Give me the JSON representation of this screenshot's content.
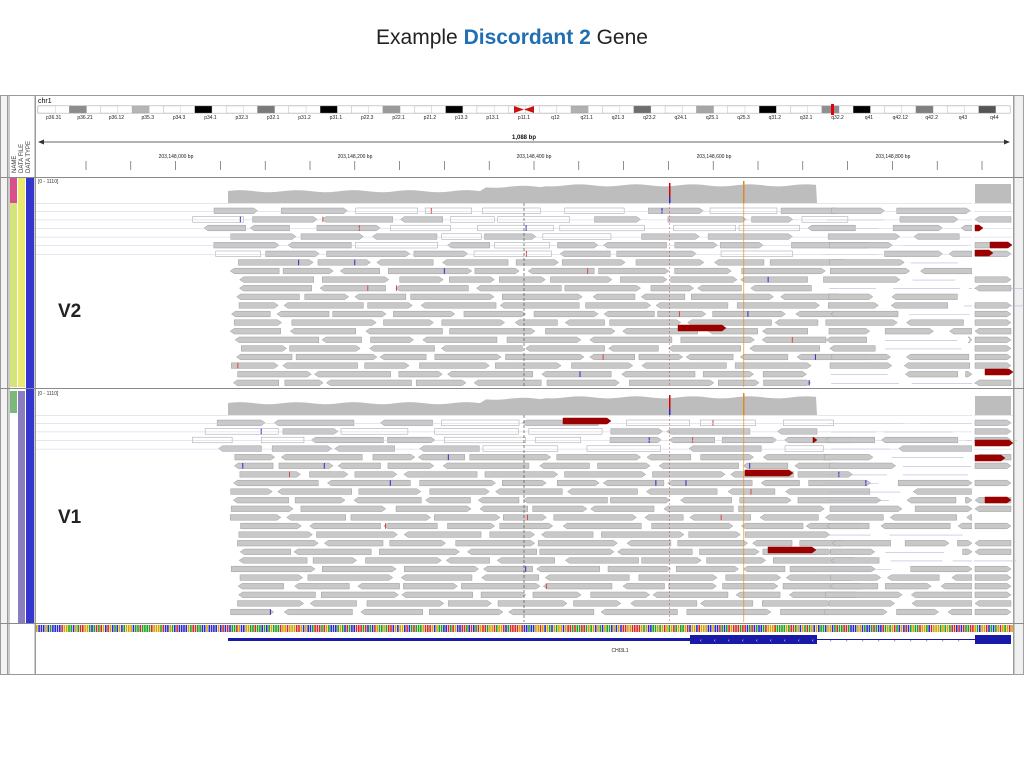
{
  "slide": {
    "title_prefix": "Example ",
    "title_highlight": "Discordant 2",
    "title_suffix": " Gene",
    "accent_color": "#1f6fb2"
  },
  "side_panel": {
    "labels": [
      "NAME",
      "DATA FILE",
      "DATA TYPE"
    ],
    "track_colors": [
      "#d94f8c",
      "#9bc96a",
      "#e8e36a",
      "#7f6fb7",
      "#3a3ad0"
    ]
  },
  "ideogram": {
    "chromosome": "chr1",
    "bands": [
      "p36.31",
      "p36.21",
      "p36.12",
      "p35.3",
      "p34.3",
      "p34.1",
      "p32.3",
      "p32.1",
      "p31.2",
      "p31.1",
      "p22.3",
      "p22.1",
      "p21.2",
      "p13.3",
      "p13.1",
      "p11.1",
      "q12",
      "q21.1",
      "q21.3",
      "q23.2",
      "q24.1",
      "q25.1",
      "q25.3",
      "q31.2",
      "q32.1",
      "q32.2",
      "q41",
      "q42.12",
      "q42.2",
      "q43",
      "q44"
    ],
    "centromere_color": "#cc1111"
  },
  "ruler": {
    "span_label": "1,088 bp",
    "ticks": [
      "203,148,000 bp",
      "203,148,200 bp",
      "203,148,400 bp",
      "203,148,600 bp",
      "203,148,800 bp"
    ]
  },
  "tracks": [
    {
      "name": "V2",
      "range_label": "[0 - 1110]"
    },
    {
      "name": "V1",
      "range_label": "[0 - 1110]"
    }
  ],
  "gene": {
    "name": "CHI3L1",
    "color": "#1a1aa8"
  },
  "colors": {
    "read_fill": "#c8c8c8",
    "read_outline": "#9e9e9e",
    "coverage": "#bdbdbd",
    "mismatch_red": "#9b0000",
    "center_line": "#555555"
  }
}
